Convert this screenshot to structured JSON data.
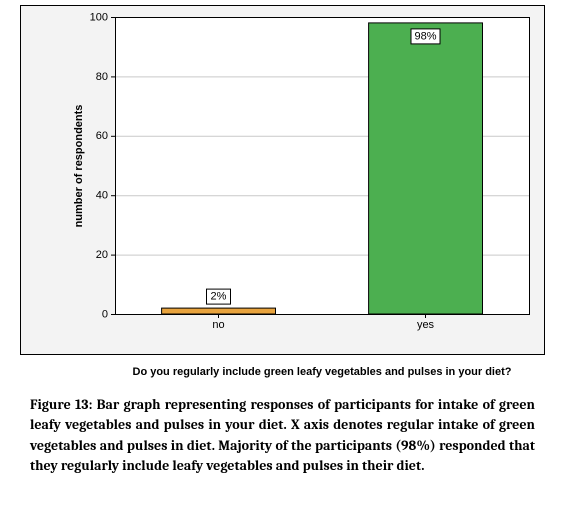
{
  "chart": {
    "type": "bar",
    "categories": [
      "no",
      "yes"
    ],
    "values": [
      2,
      98
    ],
    "bar_labels": [
      "2%",
      "98%"
    ],
    "bar_colors": [
      "#e8a33d",
      "#4caf50"
    ],
    "bar_stroke": "#000000",
    "bar_width": 0.55,
    "ylim": [
      0,
      100
    ],
    "yticks": [
      0,
      20,
      40,
      60,
      80,
      100
    ],
    "ylabel": "number of respondents",
    "xlabel": "Do you regularly include green leafy vegetables and pulses in your diet?",
    "background_color": "#f3f3f3",
    "plot_bg_color": "#ffffff",
    "panel_border_color": "#000000",
    "plot_border_color": "#000000",
    "grid_color": "#c9c9c9",
    "tick_fontsize": 11,
    "label_fontsize": 11,
    "label_fontweight": "bold"
  },
  "caption": {
    "text": "Figure 13: Bar graph representing responses of participants for intake of green leafy vegetables and pulses in your diet. X axis denotes regular intake of green vegetables and pulses in diet. Majority of the participants (98%) responded that they regularly include leafy vegetables and pulses in their diet.",
    "fontsize": 14,
    "fontweight": "bold",
    "color": "#000000"
  }
}
